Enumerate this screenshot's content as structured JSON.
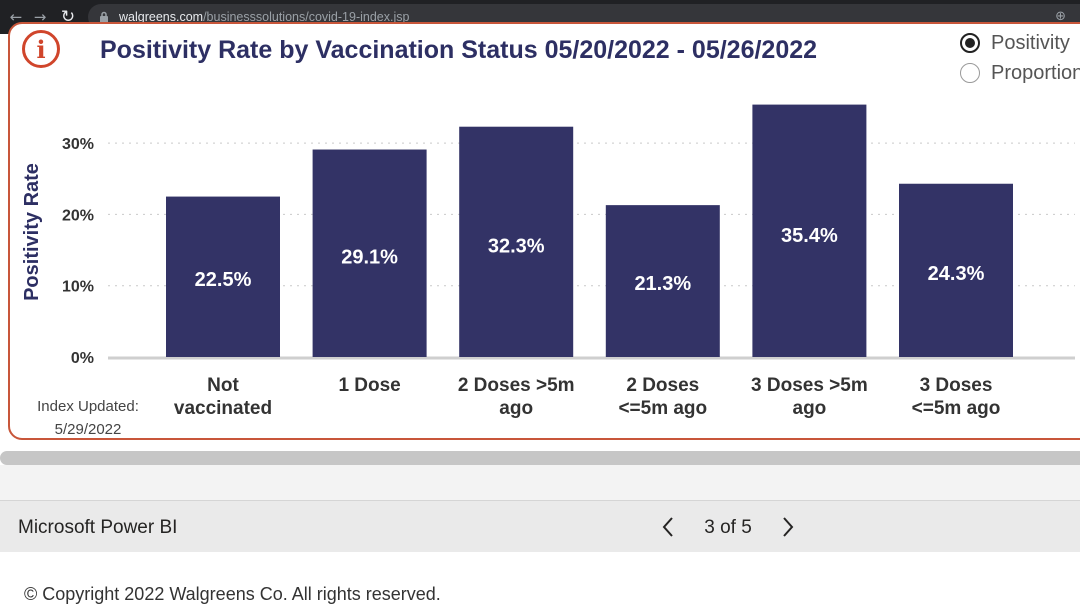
{
  "browser": {
    "url_domain": "walgreens.com",
    "url_path": "/businesssolutions/covid-19-index.jsp",
    "icons": [
      "back-icon",
      "forward-icon",
      "reload-icon",
      "lock-icon",
      "zoom-icon"
    ]
  },
  "report": {
    "info_icon_glyph": "i",
    "index_updated": "Index Updated:",
    "index_date": "5/29/2022",
    "radio_options": [
      {
        "label": "Positivity",
        "selected": true
      },
      {
        "label": "Proportion",
        "selected": false
      }
    ]
  },
  "chart_data": {
    "type": "bar",
    "title": "Positivity Rate by Vaccination Status 05/20/2022 - 05/26/2022",
    "ylabel": "Positivity Rate",
    "xlabel": "",
    "categories": [
      [
        "Not",
        "vaccinated"
      ],
      [
        "1 Dose"
      ],
      [
        "2 Doses >5m",
        "ago"
      ],
      [
        "2 Doses",
        "<=5m ago"
      ],
      [
        "3 Doses >5m",
        "ago"
      ],
      [
        "3 Doses",
        "<=5m ago"
      ]
    ],
    "values": [
      22.5,
      29.1,
      32.3,
      21.3,
      35.4,
      24.3
    ],
    "data_labels": [
      "22.5%",
      "29.1%",
      "32.3%",
      "21.3%",
      "35.4%",
      "24.3%"
    ],
    "yticks": [
      0,
      10,
      20,
      30
    ],
    "ytick_labels": [
      "0%",
      "10%",
      "20%",
      "30%"
    ],
    "ylim": [
      0,
      36
    ],
    "grid": true,
    "bar_color": "#333366",
    "title_color": "#2d2f63"
  },
  "footer": {
    "powerbi_label": "Microsoft Power BI",
    "page_info": "3 of 5",
    "copyright": "© Copyright 2022 Walgreens Co. All rights reserved."
  }
}
